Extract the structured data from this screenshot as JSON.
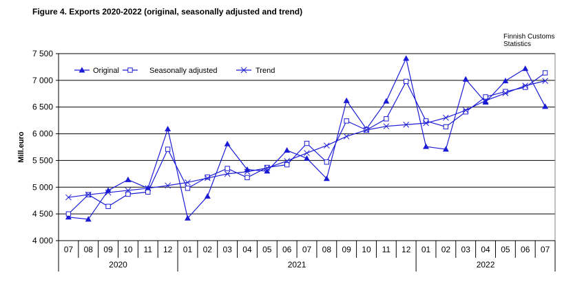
{
  "figure": {
    "title": "Figure  4. Exports 2020-2022 (original, seasonally adjusted and trend)",
    "source_lines": [
      "Finnish Customs",
      "Statistics"
    ]
  },
  "chart_data": {
    "type": "line",
    "title": "Figure  4. Exports 2020-2022 (original, seasonally adjusted and trend)",
    "ylabel": "Mill.euro",
    "xlabel": "",
    "ylim": [
      4000,
      7500
    ],
    "yticks": [
      4000,
      4500,
      5000,
      5500,
      6000,
      6500,
      7000,
      7500
    ],
    "ytick_labels": [
      "4 000",
      "4 500",
      "5 000",
      "5 500",
      "6 000",
      "6 500",
      "7 000",
      "7 500"
    ],
    "grid": "horizontal",
    "legend_position": "top-left",
    "categories": [
      "07",
      "08",
      "09",
      "10",
      "11",
      "12",
      "01",
      "02",
      "03",
      "04",
      "05",
      "06",
      "07",
      "08",
      "09",
      "10",
      "11",
      "12",
      "01",
      "02",
      "03",
      "04",
      "05",
      "06",
      "07"
    ],
    "year_groups": [
      {
        "label": "2020",
        "count": 6
      },
      {
        "label": "2021",
        "count": 12
      },
      {
        "label": "2022",
        "count": 7
      }
    ],
    "series": [
      {
        "name": "Original",
        "marker": "triangle",
        "values": [
          4440,
          4400,
          4940,
          5140,
          4980,
          6090,
          4420,
          4830,
          5810,
          5330,
          5300,
          5690,
          5540,
          5160,
          6620,
          6090,
          6610,
          7410,
          5760,
          5710,
          7020,
          6590,
          6990,
          7220,
          6510
        ]
      },
      {
        "name": "Seasonally adjusted",
        "marker": "square",
        "values": [
          4500,
          4860,
          4640,
          4870,
          4910,
          5710,
          4980,
          5190,
          5350,
          5180,
          5370,
          5420,
          5820,
          5470,
          6240,
          6070,
          6280,
          6980,
          6240,
          6130,
          6410,
          6690,
          6790,
          6870,
          7140
        ]
      },
      {
        "name": "Trend",
        "marker": "x",
        "values": [
          4810,
          4860,
          4900,
          4940,
          4980,
          5030,
          5090,
          5170,
          5250,
          5290,
          5360,
          5490,
          5640,
          5780,
          5950,
          6070,
          6140,
          6170,
          6200,
          6300,
          6440,
          6620,
          6760,
          6900,
          6990
        ]
      }
    ],
    "colors": {
      "line": "#1b1bd6",
      "grid": "#000000",
      "frame": "#808080"
    }
  }
}
